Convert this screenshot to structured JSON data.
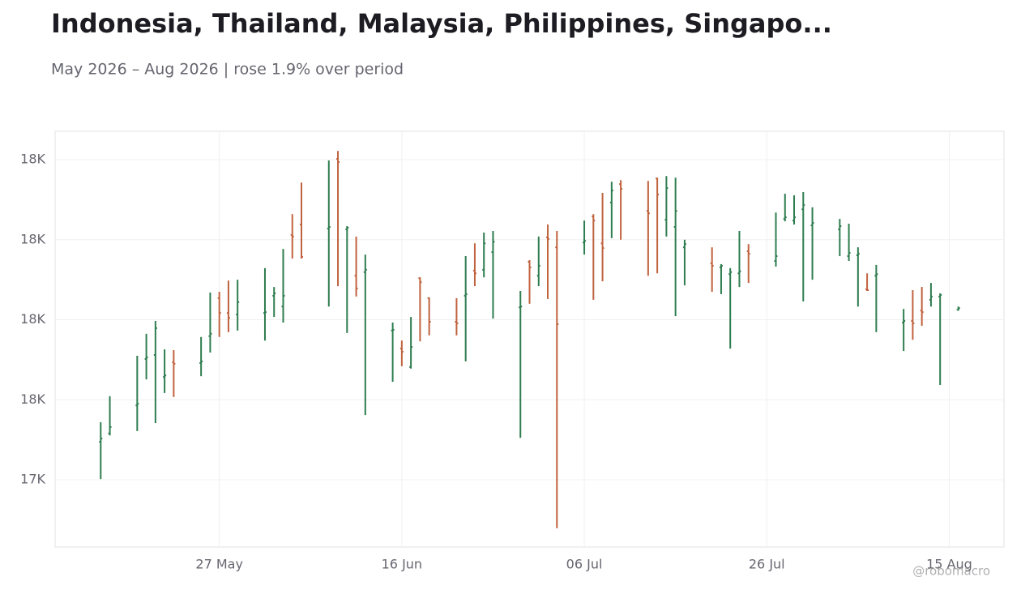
{
  "chart_data": {
    "type": "ohlc",
    "title": "Indonesia, Thailand, Malaysia, Philippines, Singapo...",
    "subtitle": "May 2026 – Aug 2026 | rose 1.9% over period",
    "watermark": "@robomacro",
    "up_color": "#2e7d4f",
    "down_color": "#c0623e",
    "grid": true,
    "x": [
      "2026-05-14",
      "2026-05-15",
      "2026-05-18",
      "2026-05-19",
      "2026-05-20",
      "2026-05-21",
      "2026-05-22",
      "2026-05-25",
      "2026-05-26",
      "2026-05-27",
      "2026-05-28",
      "2026-05-29",
      "2026-06-01",
      "2026-06-02",
      "2026-06-03",
      "2026-06-04",
      "2026-06-05",
      "2026-06-08",
      "2026-06-09",
      "2026-06-10",
      "2026-06-11",
      "2026-06-12",
      "2026-06-15",
      "2026-06-16",
      "2026-06-17",
      "2026-06-18",
      "2026-06-19",
      "2026-06-22",
      "2026-06-23",
      "2026-06-24",
      "2026-06-25",
      "2026-06-26",
      "2026-06-29",
      "2026-06-30",
      "2026-07-01",
      "2026-07-02",
      "2026-07-03",
      "2026-07-06",
      "2026-07-07",
      "2026-07-08",
      "2026-07-09",
      "2026-07-10",
      "2026-07-13",
      "2026-07-14",
      "2026-07-15",
      "2026-07-16",
      "2026-07-17",
      "2026-07-20",
      "2026-07-21",
      "2026-07-22",
      "2026-07-23",
      "2026-07-24",
      "2026-07-27",
      "2026-07-28",
      "2026-07-29",
      "2026-07-30",
      "2026-07-31",
      "2026-08-03",
      "2026-08-04",
      "2026-08-05",
      "2026-08-06",
      "2026-08-07",
      "2026-08-10",
      "2026-08-11",
      "2026-08-12",
      "2026-08-13",
      "2026-08-14",
      "2026-08-16"
    ],
    "open": [
      17495,
      17516,
      17586,
      17702,
      17712,
      17657,
      17694,
      17692,
      17759,
      17854,
      17817,
      17813,
      17817,
      17860,
      17833,
      18012,
      18038,
      18028,
      18202,
      18026,
      17910,
      17919,
      17773,
      17728,
      17682,
      17904,
      17854,
      17795,
      17860,
      17923,
      17925,
      17969,
      17831,
      17945,
      17910,
      18006,
      17981,
      17993,
      18058,
      17991,
      18093,
      18139,
      18072,
      18153,
      18050,
      18032,
      17981,
      17941,
      17931,
      17914,
      17916,
      17971,
      17947,
      18052,
      18048,
      18076,
      18036,
      18026,
      17959,
      17961,
      17876,
      17910,
      17793,
      17797,
      17823,
      17850,
      17858,
      17825
    ],
    "high": [
      17544,
      17609,
      17710,
      17765,
      17797,
      17726,
      17724,
      17757,
      17868,
      17870,
      17898,
      17900,
      17929,
      17882,
      17977,
      18064,
      18143,
      18198,
      18222,
      18034,
      18008,
      17963,
      17793,
      17748,
      17807,
      17906,
      17856,
      17854,
      17959,
      17991,
      18018,
      18022,
      17872,
      17949,
      18008,
      18038,
      18022,
      18048,
      18064,
      18117,
      18145,
      18149,
      18147,
      18155,
      18159,
      18155,
      18000,
      17981,
      17939,
      17929,
      18022,
      17989,
      18068,
      18115,
      18111,
      18119,
      18081,
      18052,
      18040,
      17981,
      17916,
      17937,
      17827,
      17874,
      17882,
      17892,
      17866,
      17833
    ],
    "low": [
      17402,
      17511,
      17522,
      17651,
      17542,
      17617,
      17607,
      17659,
      17718,
      17757,
      17769,
      17773,
      17748,
      17807,
      17793,
      17953,
      17953,
      17833,
      17884,
      17767,
      17858,
      17562,
      17645,
      17684,
      17678,
      17746,
      17761,
      17761,
      17696,
      17884,
      17906,
      17803,
      17505,
      17840,
      17884,
      17852,
      17279,
      17963,
      17850,
      17896,
      18004,
      18000,
      17910,
      17916,
      18008,
      17809,
      17886,
      17870,
      17864,
      17728,
      17882,
      17892,
      17933,
      18046,
      18038,
      17846,
      17900,
      17959,
      17947,
      17833,
      17872,
      17769,
      17722,
      17750,
      17785,
      17833,
      17637,
      17823
    ],
    "close": [
      17503,
      17532,
      17590,
      17706,
      17779,
      17661,
      17690,
      17696,
      17765,
      17817,
      17805,
      17844,
      17819,
      17866,
      17860,
      18008,
      17957,
      18032,
      18194,
      18030,
      17878,
      17925,
      17775,
      17720,
      17732,
      17894,
      17795,
      17791,
      17864,
      17916,
      17991,
      17995,
      17833,
      17931,
      17935,
      18002,
      17789,
      17997,
      18048,
      17979,
      18123,
      18127,
      18066,
      18113,
      18129,
      18072,
      17989,
      17935,
      17935,
      17919,
      17921,
      17965,
      17959,
      18056,
      18056,
      18087,
      18042,
      18034,
      17967,
      17965,
      17874,
      17914,
      17797,
      17791,
      17819,
      17858,
      17862,
      17829
    ],
    "xlim": [
      "2026-05-09",
      "2026-08-21"
    ],
    "xticks": [
      {
        "value": "2026-05-27",
        "label": "27 May"
      },
      {
        "value": "2026-06-16",
        "label": "16 Jun"
      },
      {
        "value": "2026-07-06",
        "label": "06 Jul"
      },
      {
        "value": "2026-07-26",
        "label": "26 Jul"
      },
      {
        "value": "2026-08-15",
        "label": "15 Aug"
      }
    ],
    "ylim": [
      17232,
      18271
    ],
    "yticks": [
      {
        "value": 17400,
        "label": "17K"
      },
      {
        "value": 17600,
        "label": "18K"
      },
      {
        "value": 17800,
        "label": "18K"
      },
      {
        "value": 18000,
        "label": "18K"
      },
      {
        "value": 18200,
        "label": "18K"
      }
    ]
  }
}
